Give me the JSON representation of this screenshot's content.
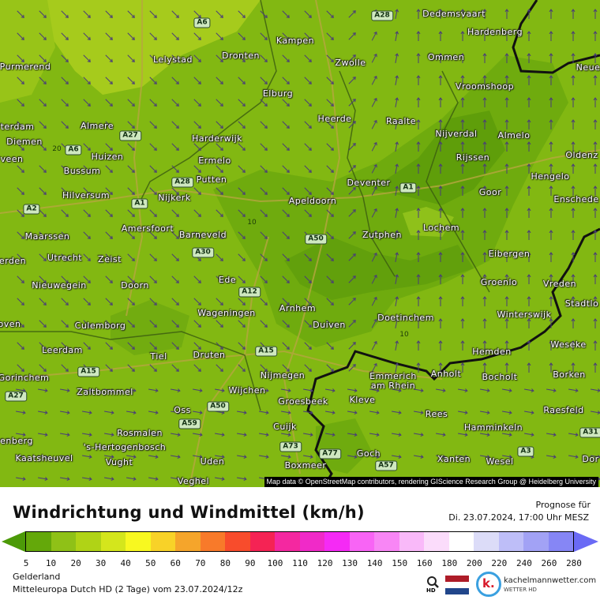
{
  "map": {
    "attribution": "Map data © OpenStreetMap contributors, rendering GIScience Research Group @ Heidelberg University",
    "colors": {
      "base": "#82b812",
      "light": "#a6cb1c",
      "dark": "#5f9e0a",
      "darker": "#4e920a",
      "arrow": "#4a3d78",
      "border": "#111111"
    },
    "cities": [
      "Dedemsvaart",
      "Hardenberg",
      "Kampen",
      "Lelystad",
      "Dronten",
      "Zwolle",
      "Ommen",
      "Purmerend",
      "Vroomshoop",
      "Neue",
      "Elburg",
      "Heerde",
      "Raalte",
      "terdam",
      "Almere",
      "Nijverdal",
      "Almelo",
      "Diemen",
      "Harderwijk",
      "Huizen",
      "Bussum",
      "Ermelo",
      "Rijssen",
      "Oldenz",
      "veen",
      "Putten",
      "Deventer",
      "Hengelo",
      "Hilversum",
      "Nijkerk",
      "Apeldoorn",
      "Goor",
      "Enschede",
      "Lochem",
      "Amersfoort",
      "Barneveld",
      "Zutphen",
      "Maarssen",
      "Utrecht",
      "Zeist",
      "erden",
      "Eibergen",
      "Nieuwegein",
      "Doorn",
      "Ede",
      "Groenlo",
      "Vreden",
      "Arnhem",
      "Stadtlo",
      "Wageningen",
      "Doetinchem",
      "Winterswijk",
      "oven",
      "Culemborg",
      "Duiven",
      "Weseke",
      "Leerdam",
      "Tiel",
      "Druten",
      "Hemden",
      "Nijmegen",
      "Emmerich am Rhein",
      "Anholt",
      "Bocholt",
      "Borken",
      "Gorinchem",
      "Zaltbommel",
      "Wijchen",
      "Groesbeek",
      "Kleve",
      "Raesfeld",
      "Oss",
      "Rees",
      "Cuijk",
      "Hamminkeln",
      "Rosmalen",
      "enberg",
      "'s-Hertogenbosch",
      "Goch",
      "Kaatsheuvel",
      "Vught",
      "Uden",
      "Boxmeer",
      "Xanten",
      "Wesel",
      "Dor",
      "Veghel"
    ],
    "roads": [
      "A6",
      "A28",
      "A6",
      "A27",
      "A28",
      "A1",
      "A1",
      "A2",
      "A50",
      "A30",
      "A12",
      "A15",
      "A15",
      "A27",
      "A50",
      "A59",
      "A73",
      "A77",
      "A57",
      "A3",
      "A31"
    ],
    "isolines": [
      "20",
      "10",
      "10"
    ]
  },
  "legend": {
    "title": "Windrichtung und Windmittel (km/h)",
    "forecast_label": "Prognose für",
    "forecast_time": "Di. 23.07.2024, 17:00 Uhr MESZ",
    "ticks": [
      "5",
      "10",
      "20",
      "30",
      "40",
      "50",
      "60",
      "70",
      "80",
      "90",
      "100",
      "110",
      "120",
      "130",
      "140",
      "150",
      "160",
      "180",
      "200",
      "220",
      "240",
      "260",
      "280"
    ],
    "colors": [
      "#64a80a",
      "#8fc117",
      "#b0d316",
      "#d4e61c",
      "#f8f820",
      "#f8d228",
      "#f5a52b",
      "#f87a2a",
      "#f84c2c",
      "#f52354",
      "#f428a0",
      "#f02ac8",
      "#f52af5",
      "#f864f5",
      "#f886f5",
      "#f9b9f9",
      "#fbdcfb",
      "#ffffff",
      "#dcdcf8",
      "#bebef8",
      "#a2a2f5",
      "#8686f5"
    ],
    "low_arrow_color": "#4c9a08",
    "high_arrow_color": "#6a6af5",
    "region": "Gelderland",
    "model": "Mitteleuropa Dutch HD (2 Tage) vom  23.07.2024/12z",
    "hd_label": "HD",
    "brand": "kachelmannwetter.com",
    "brand_sub": "WETTER HD",
    "logo_letter": "k."
  }
}
